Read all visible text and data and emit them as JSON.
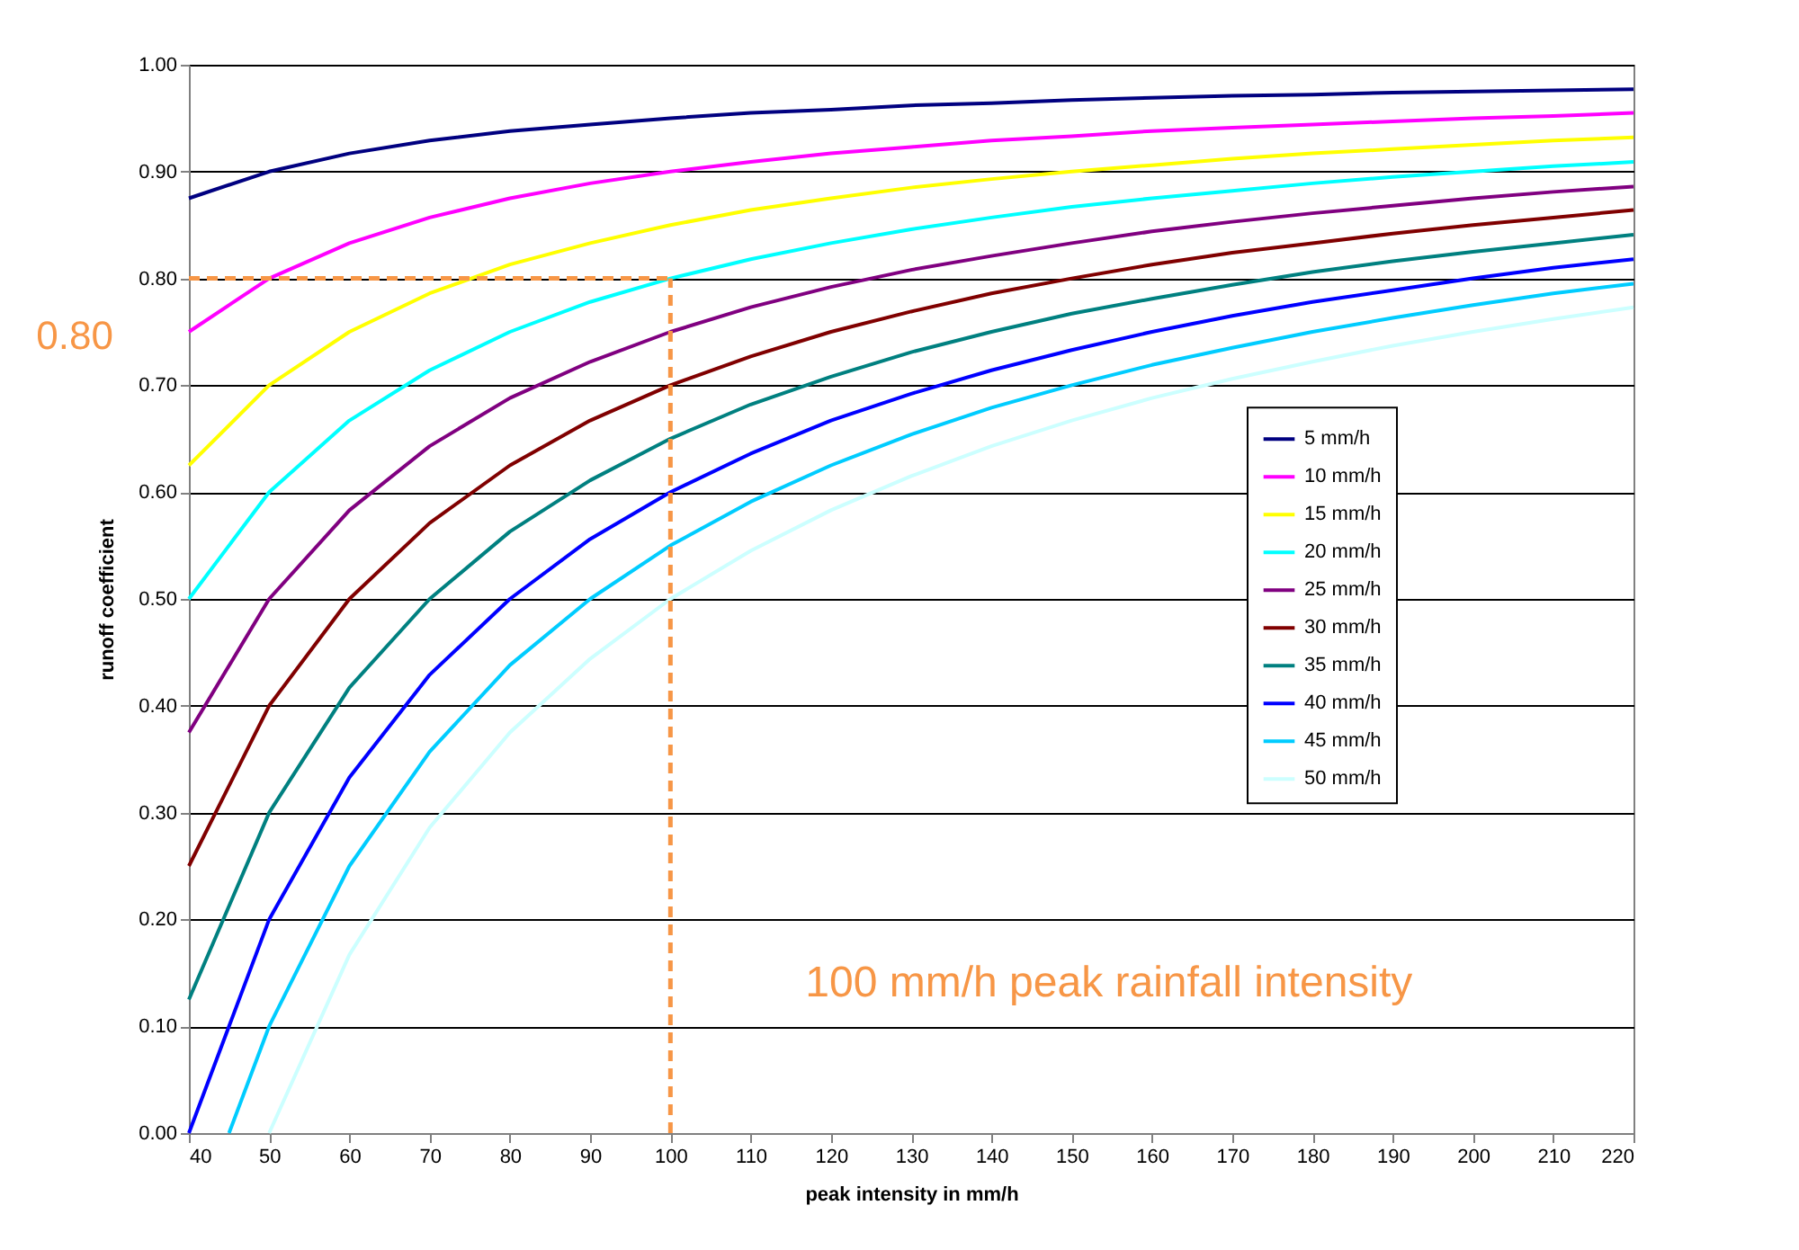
{
  "chart_data": {
    "type": "line",
    "xlabel": "peak intensity in mm/h",
    "ylabel": "runoff coefficient",
    "x": [
      40,
      50,
      60,
      70,
      80,
      90,
      100,
      110,
      120,
      130,
      140,
      150,
      160,
      170,
      180,
      190,
      200,
      210,
      220
    ],
    "xlim": [
      40,
      220
    ],
    "xticks": [
      40,
      50,
      60,
      70,
      80,
      90,
      100,
      110,
      120,
      130,
      140,
      150,
      160,
      170,
      180,
      190,
      200,
      210,
      220
    ],
    "ylim": [
      0,
      1
    ],
    "yticks": [
      {
        "value": 0,
        "label": "0.00"
      },
      {
        "value": 0.1,
        "label": "0.10"
      },
      {
        "value": 0.2,
        "label": "0.20"
      },
      {
        "value": 0.3,
        "label": "0.30"
      },
      {
        "value": 0.4,
        "label": "0.40"
      },
      {
        "value": 0.5,
        "label": "0.50"
      },
      {
        "value": 0.6,
        "label": "0.60"
      },
      {
        "value": 0.7,
        "label": "0.70"
      },
      {
        "value": 0.8,
        "label": "0.80"
      },
      {
        "value": 0.9,
        "label": "0.90"
      },
      {
        "value": 1,
        "label": "1.00"
      }
    ],
    "grid": "y",
    "legend": "right",
    "marker": "none",
    "line_style": "solid",
    "series": [
      {
        "name": "5 mm/h",
        "color": "#000080",
        "values": [
          0.875,
          0.9,
          0.917,
          0.929,
          0.938,
          0.944,
          0.95,
          0.955,
          0.958,
          0.962,
          0.964,
          0.967,
          0.969,
          0.971,
          0.972,
          0.974,
          0.975,
          0.976,
          0.977
        ]
      },
      {
        "name": "10 mm/h",
        "color": "#ff00ff",
        "values": [
          0.75,
          0.8,
          0.833,
          0.857,
          0.875,
          0.889,
          0.9,
          0.909,
          0.917,
          0.923,
          0.929,
          0.933,
          0.938,
          0.941,
          0.944,
          0.947,
          0.95,
          0.952,
          0.955
        ]
      },
      {
        "name": "15 mm/h",
        "color": "#ffff00",
        "values": [
          0.625,
          0.7,
          0.75,
          0.786,
          0.813,
          0.833,
          0.85,
          0.864,
          0.875,
          0.885,
          0.893,
          0.9,
          0.906,
          0.912,
          0.917,
          0.921,
          0.925,
          0.929,
          0.932
        ]
      },
      {
        "name": "20 mm/h",
        "color": "#00ffff",
        "values": [
          0.5,
          0.6,
          0.667,
          0.714,
          0.75,
          0.778,
          0.8,
          0.818,
          0.833,
          0.846,
          0.857,
          0.867,
          0.875,
          0.882,
          0.889,
          0.895,
          0.9,
          0.905,
          0.909
        ]
      },
      {
        "name": "25 mm/h",
        "color": "#800080",
        "values": [
          0.375,
          0.5,
          0.583,
          0.643,
          0.688,
          0.722,
          0.75,
          0.773,
          0.792,
          0.808,
          0.821,
          0.833,
          0.844,
          0.853,
          0.861,
          0.868,
          0.875,
          0.881,
          0.886
        ]
      },
      {
        "name": "30 mm/h",
        "color": "#800000",
        "values": [
          0.25,
          0.4,
          0.5,
          0.571,
          0.625,
          0.667,
          0.7,
          0.727,
          0.75,
          0.769,
          0.786,
          0.8,
          0.813,
          0.824,
          0.833,
          0.842,
          0.85,
          0.857,
          0.864
        ]
      },
      {
        "name": "35 mm/h",
        "color": "#008080",
        "values": [
          0.125,
          0.3,
          0.417,
          0.5,
          0.563,
          0.611,
          0.65,
          0.682,
          0.708,
          0.731,
          0.75,
          0.767,
          0.781,
          0.794,
          0.806,
          0.816,
          0.825,
          0.833,
          0.841
        ]
      },
      {
        "name": "40 mm/h",
        "color": "#0000ff",
        "values": [
          0,
          0.2,
          0.333,
          0.429,
          0.5,
          0.556,
          0.6,
          0.636,
          0.667,
          0.692,
          0.714,
          0.733,
          0.75,
          0.765,
          0.778,
          0.789,
          0.8,
          0.81,
          0.818
        ]
      },
      {
        "name": "45 mm/h",
        "color": "#00ccff",
        "x": [
          45,
          50,
          60,
          70,
          80,
          90,
          100,
          110,
          120,
          130,
          140,
          150,
          160,
          170,
          180,
          190,
          200,
          210,
          220
        ],
        "values": [
          0,
          0.1,
          0.25,
          0.357,
          0.438,
          0.5,
          0.55,
          0.591,
          0.625,
          0.654,
          0.679,
          0.7,
          0.719,
          0.735,
          0.75,
          0.763,
          0.775,
          0.786,
          0.795
        ]
      },
      {
        "name": "50 mm/h",
        "color": "#ccffff",
        "x": [
          50,
          60,
          70,
          80,
          90,
          100,
          110,
          120,
          130,
          140,
          150,
          160,
          170,
          180,
          190,
          200,
          210,
          220
        ],
        "values": [
          0,
          0.167,
          0.286,
          0.375,
          0.444,
          0.5,
          0.545,
          0.583,
          0.615,
          0.643,
          0.667,
          0.688,
          0.706,
          0.722,
          0.737,
          0.75,
          0.762,
          0.773
        ]
      }
    ],
    "ref_lines": [
      {
        "axis": "y",
        "value": 0.8,
        "label": "0.80",
        "color": "#f79646",
        "line_style": "dashed"
      },
      {
        "axis": "x",
        "value": 100,
        "label": "100 mm/h peak rainfall intensity",
        "color": "#f79646",
        "line_style": "dashed"
      }
    ]
  }
}
